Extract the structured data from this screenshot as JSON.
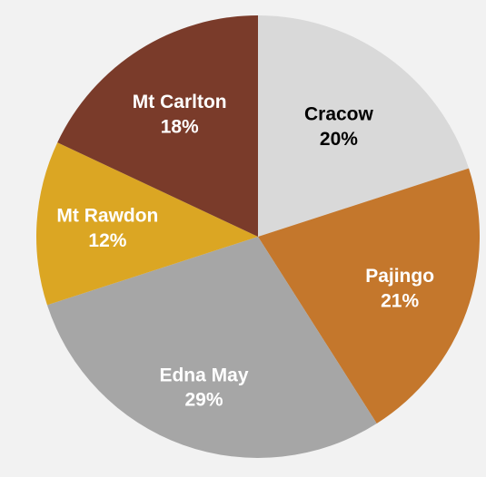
{
  "chart_data": {
    "type": "pie",
    "title": "",
    "start_angle_deg": 0,
    "direction": "clockwise",
    "slices": [
      {
        "label": "Cracow",
        "value": 20,
        "display": "20%",
        "color": "#d9d9d9",
        "label_color": "#000000"
      },
      {
        "label": "Pajingo",
        "value": 21,
        "display": "21%",
        "color": "#c4772c",
        "label_color": "#ffffff"
      },
      {
        "label": "Edna May",
        "value": 29,
        "display": "29%",
        "color": "#a6a6a6",
        "label_color": "#ffffff"
      },
      {
        "label": "Mt Rawdon",
        "value": 12,
        "display": "12%",
        "color": "#dba623",
        "label_color": "#ffffff"
      },
      {
        "label": "Mt Carlton",
        "value": 18,
        "display": "18%",
        "color": "#7a3b2a",
        "label_color": "#ffffff"
      }
    ]
  }
}
